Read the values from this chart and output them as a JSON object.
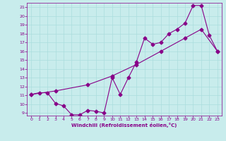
{
  "xlabel": "Windchill (Refroidissement éolien,°C)",
  "bg_color": "#c8ecec",
  "line_color": "#880088",
  "grid_color": "#aadddd",
  "spine_color": "#880088",
  "xlim": [
    -0.5,
    23.5
  ],
  "ylim": [
    8.7,
    21.5
  ],
  "xticks": [
    0,
    1,
    2,
    3,
    4,
    5,
    6,
    7,
    8,
    9,
    10,
    11,
    12,
    13,
    14,
    15,
    16,
    17,
    18,
    19,
    20,
    21,
    22,
    23
  ],
  "yticks": [
    9,
    10,
    11,
    12,
    13,
    14,
    15,
    16,
    17,
    18,
    19,
    20,
    21
  ],
  "line1_x": [
    0,
    1,
    2,
    3,
    4,
    5,
    6,
    7,
    8,
    9,
    10,
    11,
    12,
    13,
    14,
    15,
    16,
    17,
    18,
    19,
    20,
    21,
    22,
    23
  ],
  "line1_y": [
    11.1,
    11.3,
    11.3,
    10.1,
    9.8,
    8.8,
    8.8,
    9.3,
    9.2,
    9.0,
    13.0,
    11.1,
    13.0,
    14.8,
    17.5,
    16.8,
    17.0,
    18.0,
    18.5,
    19.2,
    21.2,
    21.2,
    17.8,
    16.0
  ],
  "line2_x": [
    0,
    3,
    7,
    10,
    13,
    16,
    19,
    21,
    23
  ],
  "line2_y": [
    11.1,
    11.5,
    12.2,
    13.2,
    14.5,
    16.0,
    17.5,
    18.5,
    16.0
  ],
  "marker": "D",
  "markersize": 2.5,
  "linewidth": 0.8,
  "tick_labelsize": 4.5,
  "xlabel_fontsize": 5.0,
  "xlabel_fontweight": "bold"
}
